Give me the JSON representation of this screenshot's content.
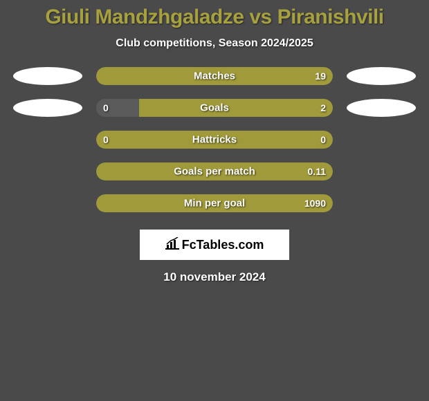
{
  "title": "Giuli Mandzhgaladze vs Piranishvili",
  "subtitle": "Club competitions, Season 2024/2025",
  "date": "10 november 2024",
  "colors": {
    "background": "#4a4a4a",
    "title_color": "#a6a13e",
    "text_color": "#ffffff",
    "ellipse_color": "#ffffff",
    "bar_olive": "#a09a3a",
    "bar_empty": "#5a5a5a"
  },
  "stats": [
    {
      "label": "Matches",
      "left_value": "",
      "right_value": "19",
      "left_pct": 0,
      "right_pct": 100,
      "show_left_ellipse": true,
      "show_right_ellipse": true,
      "bar_bg": "#a09a3a"
    },
    {
      "label": "Goals",
      "left_value": "0",
      "right_value": "2",
      "left_pct": 18,
      "right_pct": 82,
      "show_left_ellipse": true,
      "show_right_ellipse": true,
      "left_color": "#5a5a5a",
      "right_color": "#a09a3a"
    },
    {
      "label": "Hattricks",
      "left_value": "0",
      "right_value": "0",
      "left_pct": 0,
      "right_pct": 0,
      "show_left_ellipse": false,
      "show_right_ellipse": false,
      "bar_bg": "#a09a3a"
    },
    {
      "label": "Goals per match",
      "left_value": "",
      "right_value": "0.11",
      "left_pct": 0,
      "right_pct": 100,
      "show_left_ellipse": false,
      "show_right_ellipse": false,
      "bar_bg": "#a09a3a"
    },
    {
      "label": "Min per goal",
      "left_value": "",
      "right_value": "1090",
      "left_pct": 0,
      "right_pct": 100,
      "show_left_ellipse": false,
      "show_right_ellipse": false,
      "bar_bg": "#a09a3a"
    }
  ],
  "logo": "FcTables.com"
}
